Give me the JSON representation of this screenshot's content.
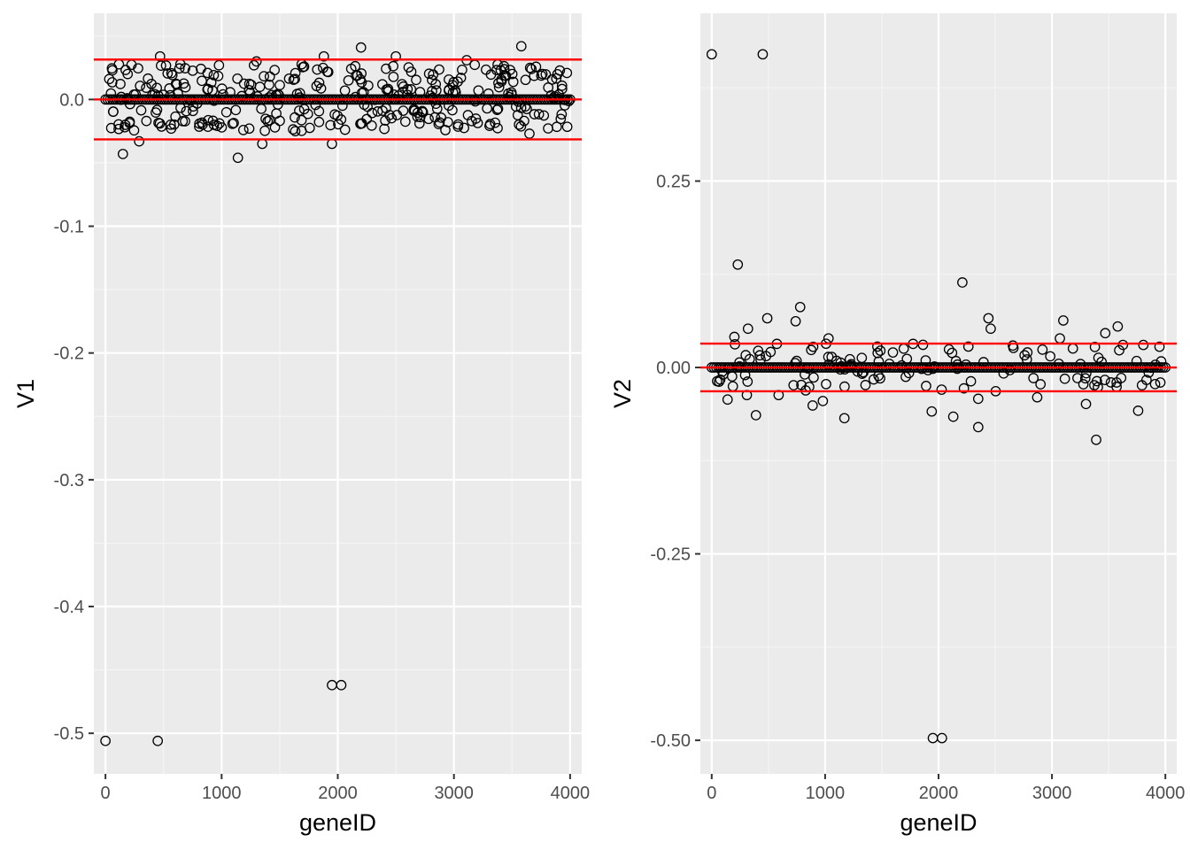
{
  "chart_data": [
    {
      "type": "scatter",
      "xlabel": "geneID",
      "ylabel": "V1",
      "xlim": [
        -100,
        4100
      ],
      "ylim": [
        -0.532,
        0.068
      ],
      "xticks": [
        0,
        1000,
        2000,
        3000,
        4000
      ],
      "xtick_labels": [
        "0",
        "1000",
        "2000",
        "3000",
        "4000"
      ],
      "yticks": [
        0.0,
        -0.1,
        -0.2,
        -0.3,
        -0.4,
        -0.5
      ],
      "ytick_labels": [
        "0.0",
        "-0.1",
        "-0.2",
        "-0.3",
        "-0.4",
        "-0.5"
      ],
      "grid": true,
      "hlines": [
        {
          "y": 0.0315,
          "color": "#ff0000"
        },
        {
          "y": 0.0,
          "color": "#ff0000"
        },
        {
          "y": -0.0315,
          "color": "#ff0000"
        }
      ],
      "zero_band": {
        "x_range": [
          0,
          4000
        ],
        "y": 0.0
      },
      "outliers": [
        {
          "x": 0,
          "y": -0.506
        },
        {
          "x": 450,
          "y": -0.506
        },
        {
          "x": 1950,
          "y": -0.462
        },
        {
          "x": 2030,
          "y": -0.462
        },
        {
          "x": 150,
          "y": -0.043
        },
        {
          "x": 1140,
          "y": -0.046
        },
        {
          "x": 1950,
          "y": -0.035
        },
        {
          "x": 1350,
          "y": -0.035
        },
        {
          "x": 290,
          "y": -0.033
        },
        {
          "x": 3650,
          "y": -0.027
        },
        {
          "x": 470,
          "y": 0.034
        },
        {
          "x": 1880,
          "y": 0.034
        },
        {
          "x": 2500,
          "y": 0.034
        },
        {
          "x": 2200,
          "y": 0.041
        },
        {
          "x": 3580,
          "y": 0.042
        },
        {
          "x": 1300,
          "y": 0.03
        },
        {
          "x": 3110,
          "y": 0.031
        }
      ],
      "scatter_band": {
        "x_range": [
          0,
          4000
        ],
        "y_range": [
          -0.025,
          0.028
        ],
        "count": 340,
        "seed": 17
      }
    },
    {
      "type": "scatter",
      "xlabel": "geneID",
      "ylabel": "V2",
      "xlim": [
        -100,
        4100
      ],
      "ylim": [
        -0.545,
        0.475
      ],
      "xticks": [
        0,
        1000,
        2000,
        3000,
        4000
      ],
      "xtick_labels": [
        "0",
        "1000",
        "2000",
        "3000",
        "4000"
      ],
      "yticks": [
        0.25,
        0.0,
        -0.25,
        -0.5
      ],
      "ytick_labels": [
        "0.25",
        "0.00",
        "-0.25",
        "-0.50"
      ],
      "grid": true,
      "hlines": [
        {
          "y": 0.032,
          "color": "#ff0000"
        },
        {
          "y": 0.0,
          "color": "#ff0000"
        },
        {
          "y": -0.032,
          "color": "#ff0000"
        }
      ],
      "zero_band": {
        "x_range": [
          0,
          4000
        ],
        "y": 0.0
      },
      "outliers": [
        {
          "x": 0,
          "y": 0.42
        },
        {
          "x": 450,
          "y": 0.42
        },
        {
          "x": 1950,
          "y": -0.497
        },
        {
          "x": 2030,
          "y": -0.497
        },
        {
          "x": 230,
          "y": 0.138
        },
        {
          "x": 2210,
          "y": 0.114
        },
        {
          "x": 780,
          "y": 0.081
        },
        {
          "x": 2440,
          "y": 0.066
        },
        {
          "x": 490,
          "y": 0.066
        },
        {
          "x": 3100,
          "y": 0.063
        },
        {
          "x": 740,
          "y": 0.062
        },
        {
          "x": 3580,
          "y": 0.055
        },
        {
          "x": 2460,
          "y": 0.052
        },
        {
          "x": 320,
          "y": 0.052
        },
        {
          "x": 3470,
          "y": 0.046
        },
        {
          "x": 200,
          "y": 0.041
        },
        {
          "x": 1030,
          "y": 0.039
        },
        {
          "x": 3070,
          "y": 0.039
        },
        {
          "x": 3390,
          "y": -0.097
        },
        {
          "x": 2350,
          "y": -0.08
        },
        {
          "x": 1170,
          "y": -0.068
        },
        {
          "x": 2130,
          "y": -0.066
        },
        {
          "x": 390,
          "y": -0.064
        },
        {
          "x": 1940,
          "y": -0.059
        },
        {
          "x": 3760,
          "y": -0.058
        },
        {
          "x": 890,
          "y": -0.051
        },
        {
          "x": 3300,
          "y": -0.049
        },
        {
          "x": 980,
          "y": -0.045
        },
        {
          "x": 140,
          "y": -0.043
        },
        {
          "x": 2350,
          "y": -0.042
        },
        {
          "x": 2870,
          "y": -0.04
        },
        {
          "x": 590,
          "y": -0.037
        },
        {
          "x": 310,
          "y": -0.037
        }
      ],
      "scatter_band": {
        "x_range": [
          0,
          4000
        ],
        "y_range": [
          -0.032,
          0.032
        ],
        "count": 130,
        "seed": 41
      }
    }
  ]
}
